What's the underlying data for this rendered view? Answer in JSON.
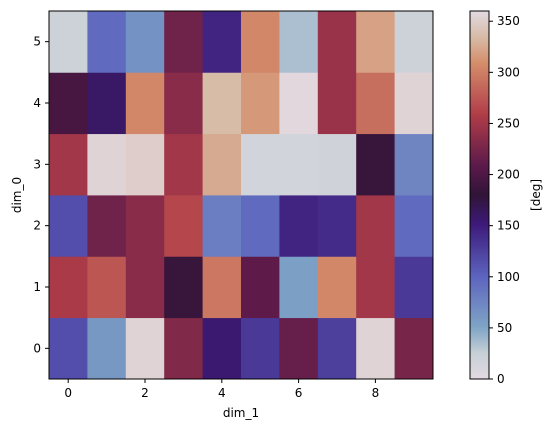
{
  "chart_data": {
    "type": "heatmap",
    "xlabel": "dim_1",
    "ylabel": "dim_0",
    "x_ticks": [
      "0",
      "2",
      "4",
      "6",
      "8"
    ],
    "y_ticks": [
      "0",
      "1",
      "2",
      "3",
      "4",
      "5"
    ],
    "x_range": [
      -0.5,
      9.5
    ],
    "y_range": [
      -0.5,
      5.5
    ],
    "colorbar": {
      "label": "[deg]",
      "range": [
        0,
        360
      ],
      "ticks": [
        "0",
        "50",
        "100",
        "150",
        "200",
        "250",
        "300",
        "350"
      ],
      "colormap": "twilight"
    },
    "rows": [
      [
        115,
        60,
        355,
        230,
        155,
        130,
        215,
        125,
        355,
        225
      ],
      [
        255,
        275,
        235,
        185,
        295,
        210,
        55,
        305,
        250,
        130
      ],
      [
        115,
        220,
        235,
        265,
        80,
        95,
        145,
        140,
        250,
        95
      ],
      [
        250,
        355,
        350,
        250,
        325,
        15,
        15,
        18,
        185,
        75
      ],
      [
        195,
        160,
        305,
        235,
        335,
        315,
        358,
        245,
        290,
        355
      ],
      [
        20,
        95,
        65,
        220,
        145,
        305,
        35,
        245,
        320,
        20
      ]
    ]
  }
}
